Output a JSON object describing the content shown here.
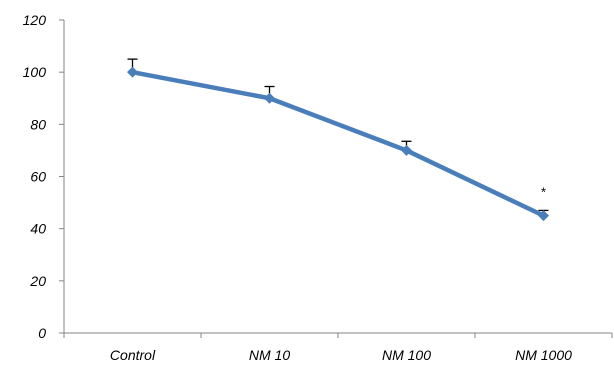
{
  "chart_data": {
    "type": "line",
    "categories": [
      "Control",
      "NM 10",
      "NM 100",
      "NM 1000"
    ],
    "series": [
      {
        "values": [
          100,
          90,
          70,
          45
        ],
        "error": [
          5,
          4.5,
          3.5,
          2
        ],
        "color": "#4a7ebb"
      }
    ],
    "yticks": [
      0,
      20,
      40,
      60,
      80,
      100,
      120
    ],
    "ylim": [
      0,
      120
    ],
    "grid": false,
    "legend": "none",
    "annotations": [
      {
        "category": "NM 1000",
        "text": "*"
      }
    ]
  }
}
